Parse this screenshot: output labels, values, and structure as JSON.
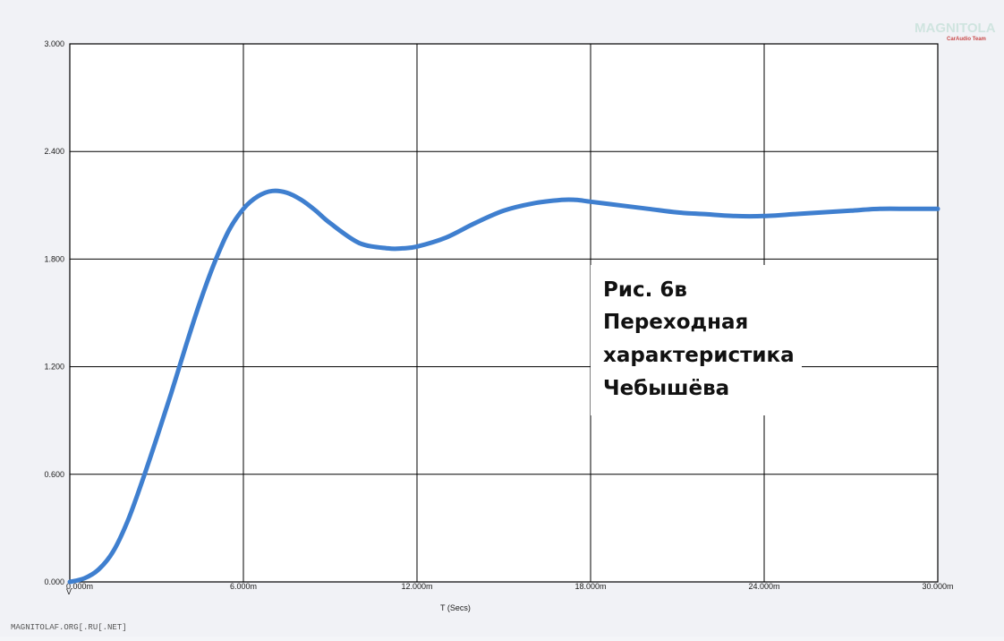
{
  "logo": {
    "main": "MAGNITOLA",
    "sub": "CarAudio Team"
  },
  "footer": {
    "text": "MAGNITOLAF.ORG[.RU[.NET]"
  },
  "caption": {
    "line1": "Рис. 6в",
    "line2": "Переходная",
    "line3": "характеристика",
    "line4": "Чебышёва"
  },
  "axis": {
    "ylabel": "V",
    "xlabel": "T (Secs)"
  },
  "colors": {
    "curve": "#3f7fcf",
    "grid": "#000000",
    "background": "#ffffff"
  },
  "chart_data": {
    "type": "line",
    "title": "",
    "xlabel": "T (Secs)",
    "ylabel": "V",
    "xlim": [
      0,
      30
    ],
    "ylim": [
      0,
      3
    ],
    "x_unit": "ms",
    "y_unit": "V",
    "grid": true,
    "x_ticks": [
      "0.000m",
      "6.000m",
      "12.000m",
      "18.000m",
      "24.000m",
      "30.000m"
    ],
    "y_ticks": [
      "0.000",
      "0.600",
      "1.200",
      "1.800",
      "2.400",
      "3.000"
    ],
    "series": [
      {
        "name": "",
        "x": [
          0,
          0.5,
          1,
          1.5,
          2,
          2.5,
          3,
          3.5,
          4,
          4.5,
          5,
          5.5,
          6,
          6.5,
          7,
          7.5,
          8,
          8.5,
          9,
          10,
          11,
          11.5,
          12,
          13,
          14,
          15,
          16,
          17,
          17.5,
          18,
          19,
          20,
          21,
          22,
          23,
          24,
          25,
          26,
          27,
          28,
          29,
          30
        ],
        "y": [
          0,
          0.02,
          0.07,
          0.17,
          0.34,
          0.56,
          0.8,
          1.05,
          1.31,
          1.56,
          1.78,
          1.96,
          2.08,
          2.15,
          2.18,
          2.17,
          2.13,
          2.07,
          2.0,
          1.89,
          1.86,
          1.86,
          1.87,
          1.92,
          2.0,
          2.07,
          2.11,
          2.13,
          2.13,
          2.12,
          2.1,
          2.08,
          2.06,
          2.05,
          2.04,
          2.04,
          2.05,
          2.06,
          2.07,
          2.08,
          2.08,
          2.08
        ]
      }
    ]
  }
}
